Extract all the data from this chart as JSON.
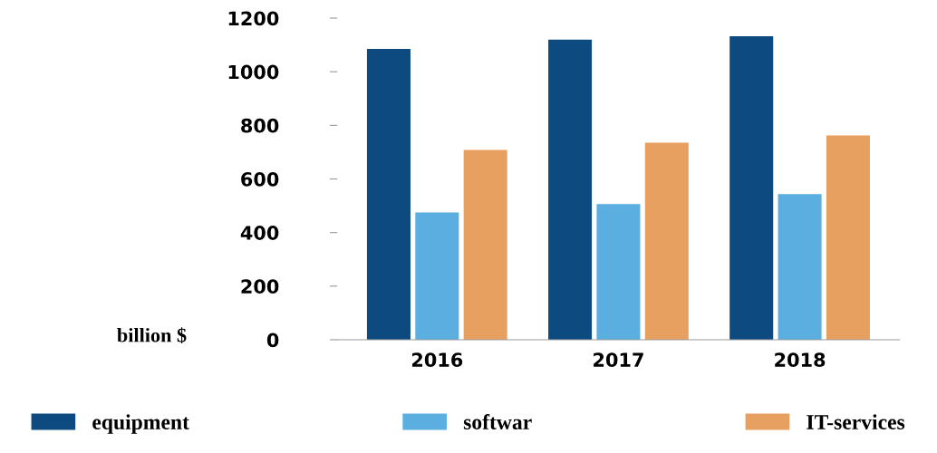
{
  "chart_data": {
    "type": "bar",
    "categories": [
      "2016",
      "2017",
      "2018"
    ],
    "series": [
      {
        "name": "equipment",
        "color": "#0d4a7f",
        "values": [
          1085,
          1120,
          1132
        ]
      },
      {
        "name": "softwar",
        "color": "#5aaee0",
        "values": [
          475,
          506,
          543
        ]
      },
      {
        "name": "IT-services",
        "color": "#e8a060",
        "values": [
          708,
          735,
          762
        ]
      }
    ],
    "ylabel": "billion $",
    "ylim": [
      0,
      1200
    ],
    "yticks": [
      0,
      200,
      400,
      600,
      800,
      1000,
      1200
    ],
    "grid": false,
    "legend": "bottom"
  }
}
